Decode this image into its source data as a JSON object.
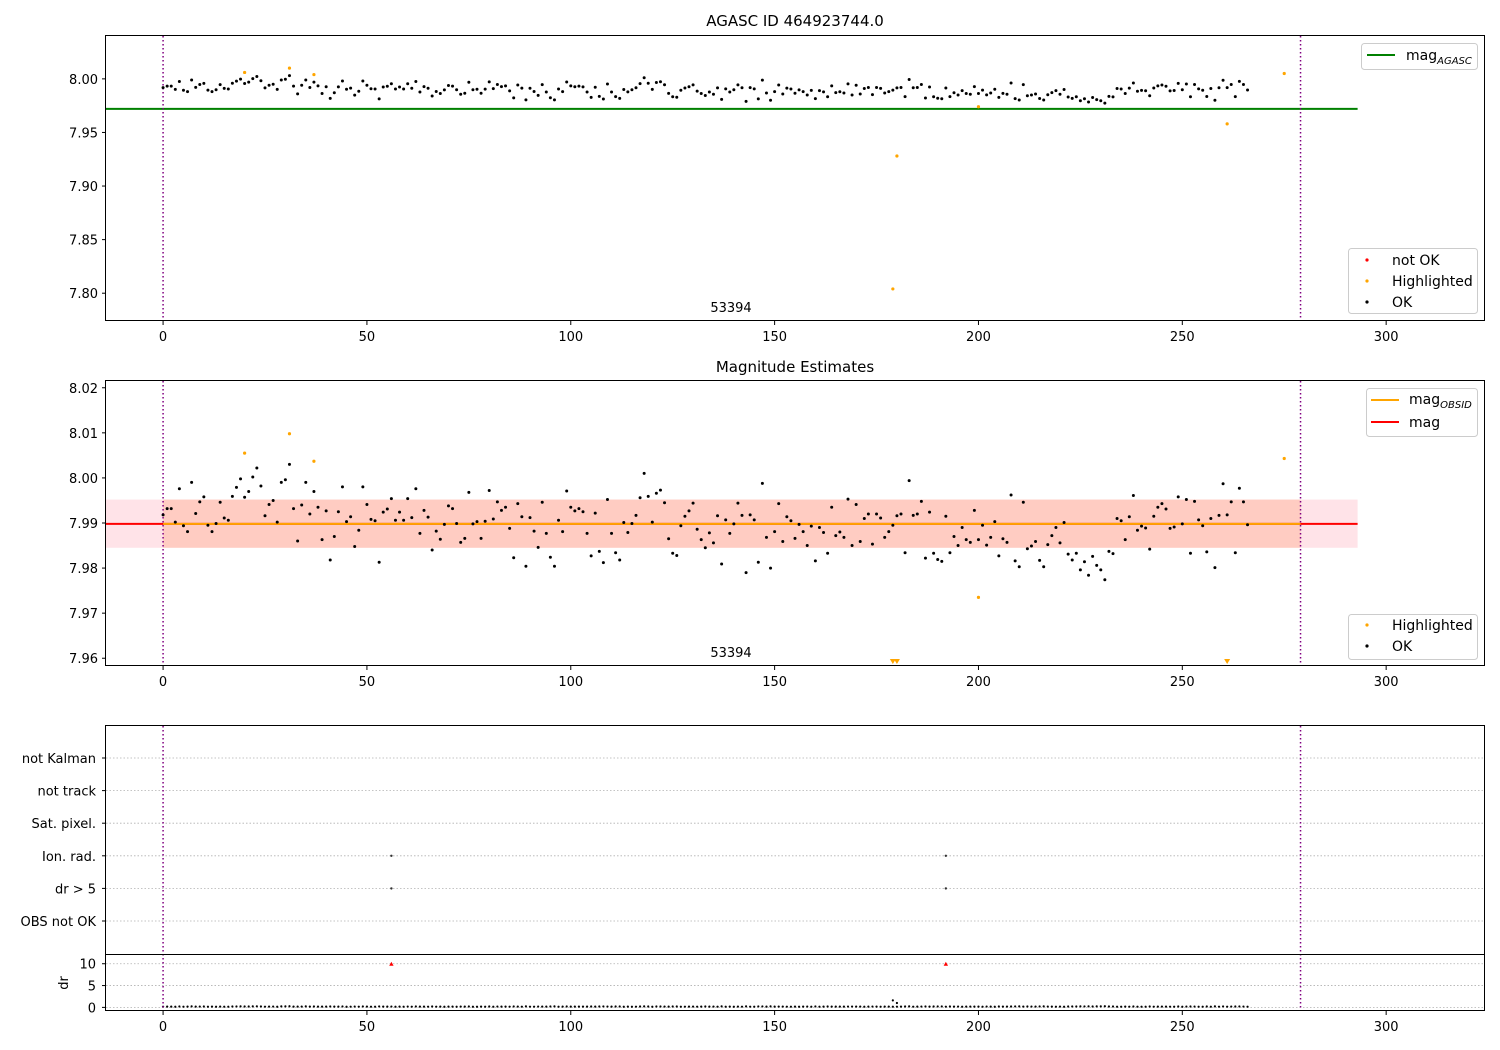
{
  "figure": {
    "width": 1500,
    "height": 1050
  },
  "colors": {
    "ok": "#000000",
    "highlighted": "#ffa500",
    "not_ok": "#ff0000",
    "agasc_line": "#008000",
    "mag_line": "#ff0000",
    "obsid_line": "#ffa500",
    "band_outer": "#ffc0cb",
    "band_inner": "#ffa07a",
    "obs_boundary": "#800080",
    "grid": "#b0b0b0"
  },
  "chart_data": [
    {
      "id": "agasc",
      "type": "scatter",
      "title": "AGASC ID 464923744.0",
      "xlim": [
        -14,
        324
      ],
      "ylim": [
        7.775,
        8.04
      ],
      "xticks": [
        0,
        50,
        100,
        150,
        200,
        250,
        300
      ],
      "yticks": [
        "7.80",
        "7.85",
        "7.90",
        "7.95",
        "8.00"
      ],
      "obs_boundaries": [
        0,
        279
      ],
      "obsid_label": "53394",
      "obsid_label_x": 139,
      "agasc_mag": 7.972,
      "agasc_line_x": [
        -14,
        293
      ],
      "highlighted_points": [
        [
          20,
          8.006
        ],
        [
          31,
          8.01
        ],
        [
          37,
          8.004
        ],
        [
          179,
          7.804
        ],
        [
          180,
          7.928
        ],
        [
          200,
          7.974
        ],
        [
          261,
          7.958
        ],
        [
          275,
          8.005
        ]
      ],
      "ok_series": "ok_mags",
      "legend_top": [
        {
          "label": "mag",
          "sub": "AGASC",
          "kind": "line",
          "color": "#008000"
        }
      ],
      "legend_bottom": [
        {
          "label": "not OK",
          "kind": "dot",
          "color": "#ff0000"
        },
        {
          "label": "Highlighted",
          "kind": "dot",
          "color": "#ffa500"
        },
        {
          "label": "OK",
          "kind": "dot",
          "color": "#000000"
        }
      ]
    },
    {
      "id": "estimates",
      "type": "scatter",
      "title": "Magnitude Estimates",
      "xlim": [
        -14,
        324
      ],
      "ylim": [
        7.9585,
        8.0215
      ],
      "xticks": [
        0,
        50,
        100,
        150,
        200,
        250,
        300
      ],
      "yticks": [
        "7.96",
        "7.97",
        "7.98",
        "7.99",
        "8.00",
        "8.01",
        "8.02"
      ],
      "obs_boundaries": [
        0,
        279
      ],
      "obsid_label": "53394",
      "obsid_label_x": 139,
      "mag": 7.9898,
      "obsid_mag": 7.9898,
      "band_outer": [
        7.9845,
        7.9952
      ],
      "band_inner": [
        7.9845,
        7.9952
      ],
      "band_x": [
        -14,
        293
      ],
      "highlighted_points": [
        [
          20,
          8.0055
        ],
        [
          31,
          8.0098
        ],
        [
          37,
          8.0037
        ],
        [
          200,
          7.9735
        ],
        [
          275,
          8.0043
        ]
      ],
      "offscale_markers_x": [
        179,
        180,
        261
      ],
      "ok_series": "ok_mags",
      "legend_top": [
        {
          "label": "mag",
          "sub": "OBSID",
          "kind": "line",
          "color": "#ffa500"
        },
        {
          "label": "mag",
          "sub": "",
          "kind": "line",
          "color": "#ff0000"
        }
      ],
      "legend_bottom": [
        {
          "label": "Highlighted",
          "kind": "dot",
          "color": "#ffa500"
        },
        {
          "label": "OK",
          "kind": "dot",
          "color": "#000000"
        }
      ]
    },
    {
      "id": "flags",
      "type": "scatter",
      "xlim": [
        -14,
        324
      ],
      "xticks": [
        0,
        50,
        100,
        150,
        200,
        250,
        300
      ],
      "obs_boundaries": [
        0,
        279
      ],
      "flag_rows": [
        "not Kalman",
        "not track",
        "Sat. pixel.",
        "Ion. rad.",
        "dr > 5",
        "OBS not OK"
      ],
      "flag_points": [
        {
          "row": "Ion. rad.",
          "x": [
            56,
            192
          ]
        },
        {
          "row": "dr > 5",
          "x": [
            56,
            192
          ]
        }
      ],
      "dr": {
        "ylabel": "dr",
        "ylim": [
          -0.6,
          12
        ],
        "yticks": [
          "0",
          "5",
          "10"
        ],
        "not_ok_x": [
          56,
          192
        ],
        "not_ok_value": 10,
        "spikes": [
          [
            179,
            1.6
          ],
          [
            180,
            1.0
          ]
        ]
      }
    }
  ],
  "ok_mags": [
    7.9918,
    7.9932,
    7.9932,
    7.9902,
    7.9976,
    7.9894,
    7.9881,
    7.999,
    7.9921,
    7.9947,
    7.9958,
    7.9895,
    7.9881,
    7.9899,
    7.9946,
    7.9911,
    7.9906,
    7.9959,
    7.9979,
    7.9998,
    7.9957,
    7.997,
    8.0002,
    8.0022,
    7.9982,
    7.9916,
    7.9941,
    7.995,
    7.9902,
    7.999,
    7.9996,
    8.003,
    7.9932,
    7.986,
    7.994,
    7.999,
    7.992,
    7.997,
    7.9935,
    7.9863,
    7.9927,
    7.9818,
    7.987,
    7.9925,
    7.998,
    7.9903,
    7.9914,
    7.9848,
    7.9884,
    7.998,
    7.9941,
    7.9908,
    7.9905,
    7.9813,
    7.9924,
    7.9931,
    7.9954,
    7.9906,
    7.9924,
    7.9906,
    7.9954,
    7.9912,
    7.9976,
    7.9877,
    7.9928,
    7.9913,
    7.984,
    7.9882,
    7.9864,
    7.9897,
    7.9938,
    7.9932,
    7.9899,
    7.9857,
    7.9866,
    7.9968,
    7.9898,
    7.9903,
    7.9866,
    7.9904,
    7.9972,
    7.9909,
    7.9947,
    7.9928,
    7.9935,
    7.9888,
    7.9823,
    7.9943,
    7.9914,
    7.9804,
    7.9912,
    7.9882,
    7.9846,
    7.9946,
    7.9877,
    7.9824,
    7.9804,
    7.9906,
    7.9881,
    7.9971,
    7.9935,
    7.9927,
    7.9932,
    7.9925,
    7.9877,
    7.9827,
    7.9922,
    7.9837,
    7.9812,
    7.9952,
    7.9877,
    7.9834,
    7.9818,
    7.9901,
    7.9879,
    7.9899,
    7.9917,
    7.9956,
    8.001,
    7.9959,
    7.9902,
    7.9966,
    7.9973,
    7.9945,
    7.9865,
    7.9833,
    7.9828,
    7.9894,
    7.9915,
    7.9927,
    7.9944,
    7.9886,
    7.9863,
    7.9845,
    7.9878,
    7.9856,
    7.9916,
    7.9809,
    7.9907,
    7.9877,
    7.9898,
    7.9944,
    7.9917,
    7.979,
    7.9918,
    7.9907,
    7.9813,
    7.9988,
    7.9868,
    7.98,
    7.9881,
    7.9943,
    7.9859,
    7.9914,
    7.9905,
    7.9866,
    7.9897,
    7.9881,
    7.985,
    7.9893,
    7.9816,
    7.989,
    7.9879,
    7.9833,
    7.9935,
    7.9872,
    7.988,
    7.9868,
    7.9953,
    7.985,
    7.9941,
    7.9859,
    7.991,
    7.992,
    7.9853,
    7.992,
    7.9911,
    7.9868,
    7.9881,
    7.9895,
    7.9916,
    7.992,
    7.9834,
    7.9994,
    7.9917,
    7.992,
    7.9948,
    7.9822,
    7.9924,
    7.9833,
    7.9819,
    7.9815,
    7.9915,
    7.9834,
    7.987,
    7.985,
    7.989,
    7.9863,
    7.9857,
    7.9928,
    7.9863,
    7.9895,
    7.9851,
    7.9868,
    7.9903,
    7.9827,
    7.9865,
    7.9857,
    7.9962,
    7.9816,
    7.9803,
    7.9946,
    7.9843,
    7.9849,
    7.9859,
    7.9817,
    7.9803,
    7.9852,
    7.9872,
    7.989,
    7.9856,
    7.9901,
    7.9831,
    7.9818,
    7.9833,
    7.9796,
    7.9814,
    7.9784,
    7.9826,
    7.9806,
    7.9796,
    7.9774,
    7.9837,
    7.9832,
    7.991,
    7.9905,
    7.9863,
    7.9914,
    7.9961,
    7.9884,
    7.9893,
    7.9889,
    7.9842,
    7.9915,
    7.9935,
    7.9943,
    7.9931,
    7.9888,
    7.9891,
    7.9958,
    7.9898,
    7.9952,
    7.9833,
    7.9948,
    7.9907,
    7.9894,
    7.9836,
    7.991,
    7.9801,
    7.9917,
    7.9987,
    7.9918,
    7.9947,
    7.9834,
    7.9977,
    7.9947,
    7.9896
  ]
}
